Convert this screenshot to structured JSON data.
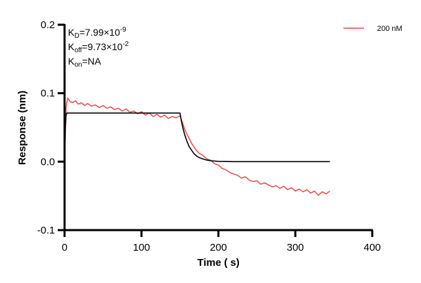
{
  "chart_data": {
    "type": "line",
    "xlabel": "Time ( s)",
    "ylabel": "Response (nm)",
    "xlim": [
      0,
      400
    ],
    "ylim": [
      -0.1,
      0.2
    ],
    "xticks": [
      "0",
      "100",
      "200",
      "300",
      "400"
    ],
    "xtick_values": [
      0,
      100,
      200,
      300,
      400
    ],
    "yticks": [
      "-0.1",
      "0.0",
      "0.1",
      "0.2"
    ],
    "ytick_values": [
      -0.1,
      0,
      0.1,
      0.2
    ],
    "grid": false,
    "legend_position": "top-right",
    "annotations": {
      "kd": {
        "label": "K",
        "sub": "D",
        "value": "=7.99×10",
        "exp": "-9"
      },
      "koff": {
        "label": "K",
        "sub": "off",
        "value": "=9.73×10",
        "exp": "-2"
      },
      "kon": {
        "label": "K",
        "sub": "on",
        "value": "=NA"
      }
    },
    "series": [
      {
        "name": "200 nM",
        "color": "#e84a4a",
        "x": [
          0,
          2,
          4,
          7,
          10,
          14,
          18,
          22,
          26,
          30,
          35,
          40,
          45,
          50,
          55,
          60,
          65,
          70,
          75,
          80,
          85,
          90,
          95,
          100,
          105,
          110,
          115,
          120,
          125,
          130,
          135,
          140,
          145,
          150,
          153,
          156,
          159,
          162,
          165,
          168,
          171,
          175,
          180,
          185,
          190,
          195,
          200,
          205,
          210,
          215,
          220,
          225,
          230,
          235,
          240,
          245,
          250,
          255,
          260,
          265,
          270,
          275,
          280,
          285,
          290,
          295,
          300,
          305,
          310,
          315,
          320,
          325,
          330,
          335,
          340,
          345
        ],
        "y": [
          -0.01,
          0.08,
          0.093,
          0.088,
          0.086,
          0.089,
          0.084,
          0.086,
          0.082,
          0.085,
          0.081,
          0.083,
          0.079,
          0.082,
          0.078,
          0.08,
          0.076,
          0.078,
          0.074,
          0.077,
          0.072,
          0.074,
          0.07,
          0.073,
          0.068,
          0.071,
          0.066,
          0.069,
          0.065,
          0.068,
          0.063,
          0.066,
          0.064,
          0.067,
          0.058,
          0.048,
          0.04,
          0.034,
          0.027,
          0.022,
          0.017,
          0.012,
          0.009,
          0.004,
          0.002,
          -0.003,
          -0.005,
          -0.01,
          -0.012,
          -0.016,
          -0.018,
          -0.02,
          -0.024,
          -0.022,
          -0.027,
          -0.029,
          -0.028,
          -0.033,
          -0.031,
          -0.034,
          -0.037,
          -0.035,
          -0.039,
          -0.036,
          -0.041,
          -0.038,
          -0.043,
          -0.04,
          -0.044,
          -0.041,
          -0.046,
          -0.043,
          -0.049,
          -0.044,
          -0.047,
          -0.043
        ]
      },
      {
        "color": "#000000",
        "x": [
          0,
          1,
          2,
          3,
          150,
          153,
          156,
          159,
          162,
          165,
          168,
          172,
          176,
          180,
          185,
          190,
          200,
          220,
          345
        ],
        "y": [
          0,
          0.05,
          0.068,
          0.071,
          0.071,
          0.053,
          0.04,
          0.03,
          0.022,
          0.017,
          0.012,
          0.008,
          0.0055,
          0.0038,
          0.0022,
          0.0013,
          0.0004,
          0,
          0
        ]
      }
    ]
  }
}
